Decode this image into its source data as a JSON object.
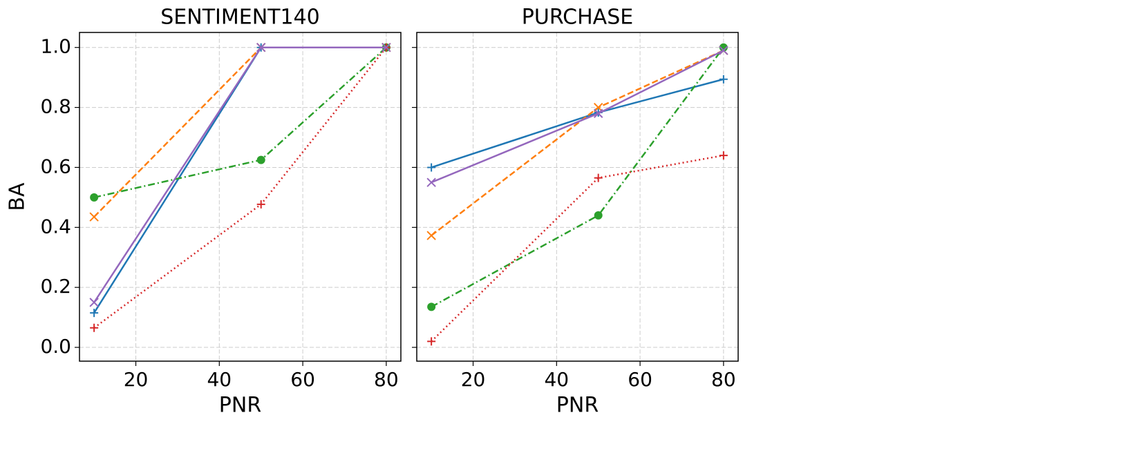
{
  "chart_data": [
    {
      "type": "line",
      "title": "SENTIMENT140",
      "xlabel": "PNR",
      "ylabel": "BA",
      "x": [
        10,
        50,
        80
      ],
      "xlim": [
        6.5,
        83.5
      ],
      "xticks": [
        20,
        40,
        60,
        80
      ],
      "ylim": [
        -0.046,
        1.05
      ],
      "yticks": [
        {
          "value": 0,
          "label": "0.0"
        },
        0.2,
        0.4,
        0.6,
        0.8,
        {
          "value": 1,
          "label": "1.0"
        }
      ],
      "grid": true,
      "series": [
        {
          "color": "#1f77b4",
          "dash": "solid",
          "marker": "+",
          "values": [
            0.115,
            1.0,
            1.0
          ]
        },
        {
          "color": "#ff7f0e",
          "dash": "dashed",
          "marker": "x",
          "values": [
            0.435,
            1.0,
            1.0
          ]
        },
        {
          "color": "#2ca02c",
          "dash": "dashdot",
          "marker": "o",
          "values": [
            0.5,
            0.625,
            1.0
          ]
        },
        {
          "color": "#d62728",
          "dash": "dotted",
          "marker": "+",
          "values": [
            0.065,
            0.477,
            1.0
          ]
        },
        {
          "color": "#9467bd",
          "dash": "solid",
          "marker": "x",
          "values": [
            0.15,
            1.0,
            1.0
          ]
        }
      ]
    },
    {
      "type": "line",
      "title": "PURCHASE",
      "xlabel": "PNR",
      "x": [
        10,
        50,
        80
      ],
      "xlim": [
        6.5,
        83.5
      ],
      "xticks": [
        20,
        40,
        60,
        80
      ],
      "ylim": [
        -0.046,
        1.05
      ],
      "grid": true,
      "series": [
        {
          "color": "#1f77b4",
          "dash": "solid",
          "marker": "+",
          "values": [
            0.6,
            0.783,
            0.894
          ]
        },
        {
          "color": "#ff7f0e",
          "dash": "dashed",
          "marker": "x",
          "values": [
            0.373,
            0.8,
            0.99
          ]
        },
        {
          "color": "#2ca02c",
          "dash": "dashdot",
          "marker": "o",
          "values": [
            0.135,
            0.44,
            1.0
          ]
        },
        {
          "color": "#d62728",
          "dash": "dotted",
          "marker": "+",
          "values": [
            0.02,
            0.565,
            0.64
          ]
        },
        {
          "color": "#9467bd",
          "dash": "solid",
          "marker": "x",
          "values": [
            0.55,
            0.78,
            0.99
          ]
        }
      ]
    }
  ]
}
